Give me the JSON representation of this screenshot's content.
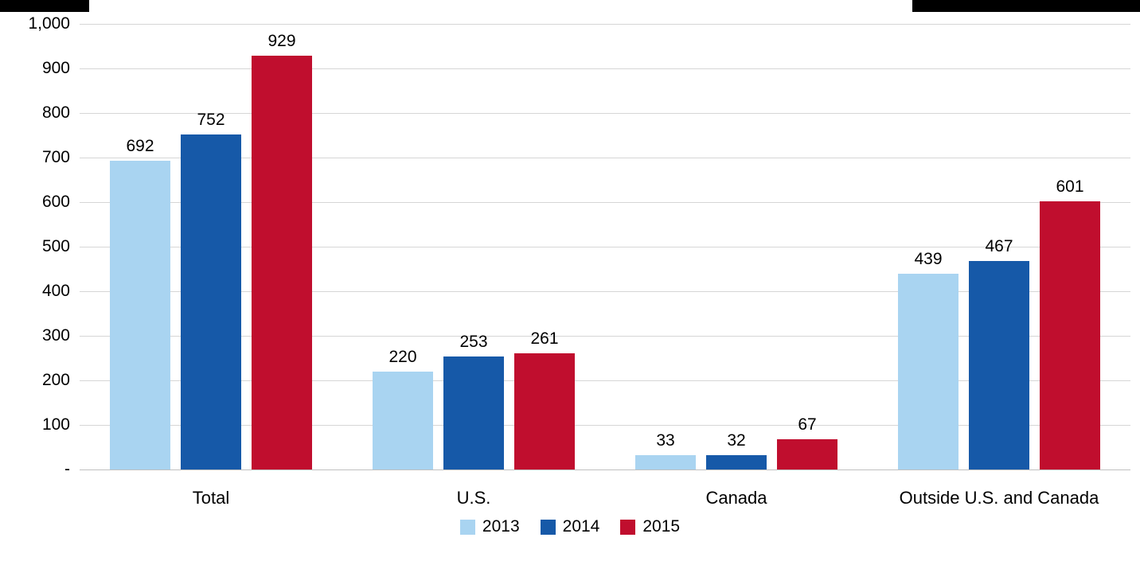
{
  "chart_data": {
    "type": "bar",
    "categories": [
      "Total",
      "U.S.",
      "Canada",
      "Outside U.S. and Canada"
    ],
    "series": [
      {
        "name": "2013",
        "color": "#A9D4F1",
        "values": [
          692,
          220,
          33,
          439
        ]
      },
      {
        "name": "2014",
        "color": "#1659A8",
        "values": [
          752,
          253,
          32,
          467
        ]
      },
      {
        "name": "2015",
        "color": "#C00E2E",
        "values": [
          929,
          261,
          67,
          601
        ]
      }
    ],
    "title": "",
    "xlabel": "",
    "ylabel": "",
    "ylim": [
      0,
      1000
    ],
    "ytick_step": 100,
    "ytick_labels": [
      "-",
      "100",
      "200",
      "300",
      "400",
      "500",
      "600",
      "700",
      "800",
      "900",
      "1,000"
    ],
    "grid": true,
    "value_labels": true,
    "legend_position": "bottom",
    "colors": {
      "gridline": "#D6D6D6",
      "text": "#000000",
      "background": "#FFFFFF"
    }
  }
}
